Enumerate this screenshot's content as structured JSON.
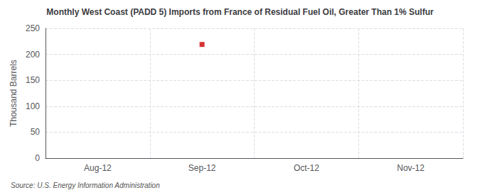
{
  "chart_data": {
    "type": "scatter",
    "title": "Monthly West Coast (PADD 5) Imports from France of Residual Fuel Oil, Greater Than 1% Sulfur",
    "ylabel": "Thousand Barrels",
    "source": "Source: U.S. Energy Information Administration",
    "categories": [
      "Aug-12",
      "Sep-12",
      "Oct-12",
      "Nov-12"
    ],
    "values": [
      null,
      219,
      null,
      null
    ],
    "color": "#cc0000",
    "marker": "square",
    "ylim": [
      0,
      250
    ],
    "yticks": [
      0,
      50,
      100,
      150,
      200,
      250
    ],
    "grid": true
  }
}
